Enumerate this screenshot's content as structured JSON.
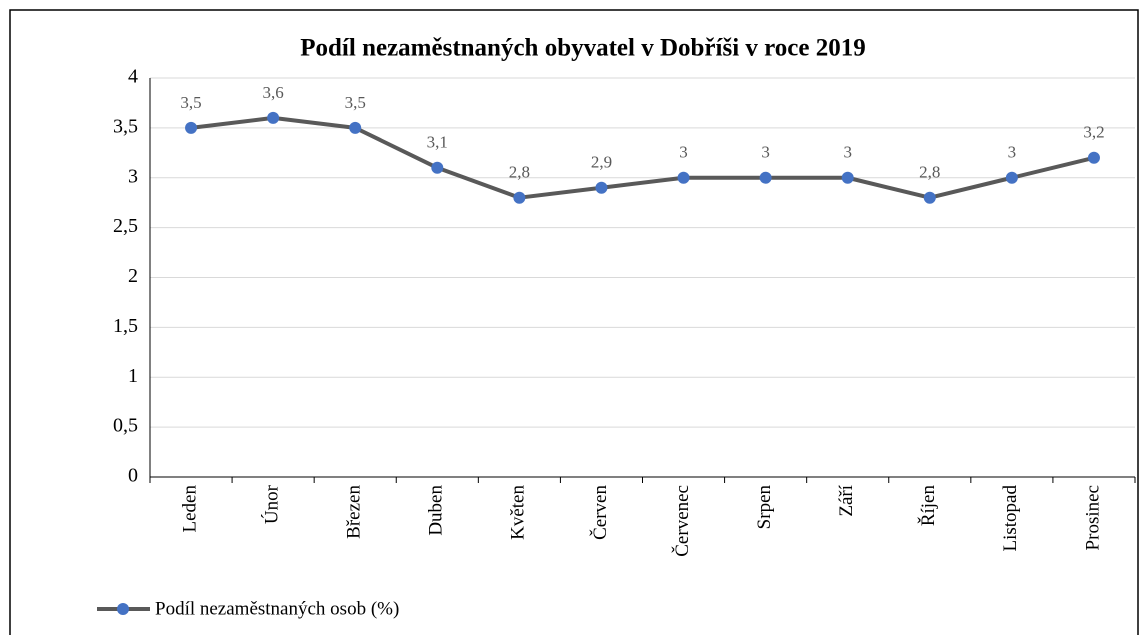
{
  "chart_data": {
    "type": "line",
    "title": "Podíl nezaměstnaných obyvatel v Dobříši v roce 2019",
    "categories": [
      "Leden",
      "Únor",
      "Březen",
      "Duben",
      "Květen",
      "Červen",
      "Červenec",
      "Srpen",
      "Září",
      "Říjen",
      "Listopad",
      "Prosinec"
    ],
    "series": [
      {
        "name": "Podíl nezaměstnaných osob (%)",
        "color": "#595959",
        "marker_color": "#4472c4",
        "values": [
          3.5,
          3.6,
          3.5,
          3.1,
          2.8,
          2.9,
          3,
          3,
          3,
          2.8,
          3,
          3.2
        ],
        "value_labels": [
          "3,5",
          "3,6",
          "3,5",
          "3,1",
          "2,8",
          "2,9",
          "3",
          "3",
          "3",
          "2,8",
          "3",
          "3,2"
        ]
      }
    ],
    "ylim": [
      0,
      4
    ],
    "yticks": [
      0,
      {
        "value": 0.5,
        "label": "0,5"
      },
      1,
      {
        "value": 1.5,
        "label": "1,5"
      },
      2,
      {
        "value": 2.5,
        "label": "2,5"
      },
      3,
      {
        "value": 3.5,
        "label": "3,5"
      },
      4
    ],
    "grid": true,
    "legend": "bottom-left"
  }
}
